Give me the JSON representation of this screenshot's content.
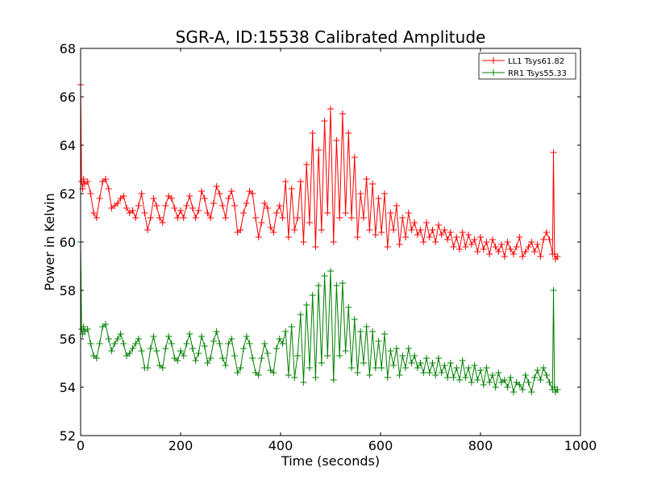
{
  "chart_data": {
    "type": "line",
    "title": "SGR-A, ID:15538 Calibrated Amplitude",
    "xlabel": "Time (seconds)",
    "ylabel": "Power in Kelvin",
    "xlim": [
      0,
      1000
    ],
    "ylim": [
      52,
      68
    ],
    "xticks": [
      0,
      200,
      400,
      600,
      800,
      1000
    ],
    "yticks": [
      52,
      54,
      56,
      58,
      60,
      62,
      64,
      66,
      68
    ],
    "grid": false,
    "legend_position": "top-right",
    "marker": "+",
    "series": [
      {
        "name": "LL1 Tsys61.82",
        "color": "#ff0000",
        "x": [
          0,
          2,
          4,
          6,
          8,
          14,
          20,
          26,
          32,
          38,
          44,
          50,
          56,
          62,
          68,
          74,
          80,
          86,
          92,
          98,
          104,
          110,
          116,
          122,
          128,
          134,
          140,
          146,
          152,
          158,
          164,
          170,
          176,
          182,
          188,
          194,
          200,
          206,
          212,
          218,
          224,
          230,
          236,
          242,
          248,
          254,
          260,
          266,
          272,
          278,
          284,
          290,
          296,
          302,
          308,
          314,
          320,
          326,
          332,
          338,
          344,
          350,
          356,
          362,
          368,
          374,
          380,
          386,
          392,
          398,
          404,
          410,
          416,
          422,
          428,
          434,
          440,
          446,
          452,
          458,
          464,
          470,
          476,
          482,
          488,
          494,
          500,
          506,
          512,
          518,
          524,
          530,
          536,
          542,
          548,
          554,
          560,
          566,
          572,
          578,
          584,
          590,
          596,
          602,
          608,
          614,
          620,
          626,
          632,
          638,
          644,
          650,
          656,
          662,
          668,
          674,
          680,
          686,
          692,
          698,
          704,
          710,
          716,
          722,
          728,
          734,
          740,
          746,
          752,
          758,
          764,
          770,
          776,
          782,
          788,
          794,
          800,
          806,
          812,
          818,
          824,
          830,
          836,
          842,
          848,
          854,
          860,
          866,
          872,
          878,
          884,
          890,
          896,
          902,
          908,
          914,
          920,
          926,
          932,
          938,
          944,
          946,
          948,
          950,
          954
        ],
        "y": [
          66.5,
          62.5,
          62.2,
          62.6,
          62.4,
          62.5,
          62.0,
          61.2,
          61.0,
          61.8,
          62.5,
          62.6,
          62.2,
          61.4,
          61.5,
          61.6,
          61.8,
          61.9,
          61.4,
          61.2,
          61.3,
          61.0,
          61.5,
          62.0,
          61.2,
          60.5,
          61.0,
          61.8,
          61.5,
          61.0,
          60.8,
          61.5,
          61.9,
          61.8,
          61.4,
          61.0,
          61.3,
          61.0,
          61.5,
          61.9,
          61.4,
          61.0,
          61.3,
          62.1,
          61.8,
          61.2,
          61.0,
          61.6,
          62.3,
          62.0,
          61.5,
          61.0,
          61.8,
          62.1,
          61.5,
          60.4,
          60.5,
          61.2,
          61.6,
          62.1,
          62.0,
          61.0,
          60.2,
          60.8,
          61.6,
          61.4,
          60.6,
          60.4,
          61.2,
          61.5,
          61.0,
          62.5,
          60.2,
          62.2,
          60.5,
          61.0,
          62.5,
          60.0,
          63.2,
          60.8,
          64.5,
          59.8,
          63.8,
          60.5,
          65.0,
          61.2,
          65.5,
          60.0,
          64.2,
          61.0,
          65.3,
          61.2,
          64.5,
          61.0,
          63.5,
          60.2,
          62.0,
          61.0,
          62.6,
          60.5,
          62.4,
          60.3,
          61.8,
          60.4,
          62.0,
          59.8,
          61.2,
          60.5,
          61.5,
          59.9,
          61.0,
          60.2,
          61.2,
          60.5,
          60.8,
          60.3,
          60.5,
          60.0,
          60.8,
          60.2,
          60.5,
          60.0,
          60.7,
          60.3,
          60.5,
          60.1,
          60.4,
          59.8,
          60.2,
          59.7,
          60.4,
          59.8,
          60.3,
          59.9,
          60.1,
          59.6,
          60.2,
          59.7,
          60.0,
          59.5,
          60.1,
          59.8,
          59.6,
          59.9,
          59.4,
          60.0,
          59.7,
          59.5,
          59.8,
          60.2,
          59.4,
          59.6,
          59.8,
          60.0,
          59.6,
          59.9,
          59.4,
          60.1,
          60.4,
          60.1,
          59.5,
          63.7,
          59.5,
          59.3,
          59.4
        ]
      },
      {
        "name": "RR1 Tsys55.33",
        "color": "#008000",
        "x": [
          0,
          2,
          4,
          6,
          8,
          14,
          20,
          26,
          32,
          38,
          44,
          50,
          56,
          62,
          68,
          74,
          80,
          86,
          92,
          98,
          104,
          110,
          116,
          122,
          128,
          134,
          140,
          146,
          152,
          158,
          164,
          170,
          176,
          182,
          188,
          194,
          200,
          206,
          212,
          218,
          224,
          230,
          236,
          242,
          248,
          254,
          260,
          266,
          272,
          278,
          284,
          290,
          296,
          302,
          308,
          314,
          320,
          326,
          332,
          338,
          344,
          350,
          356,
          362,
          368,
          374,
          380,
          386,
          392,
          398,
          404,
          410,
          416,
          422,
          428,
          434,
          440,
          446,
          452,
          458,
          464,
          470,
          476,
          482,
          488,
          494,
          500,
          506,
          512,
          518,
          524,
          530,
          536,
          542,
          548,
          554,
          560,
          566,
          572,
          578,
          584,
          590,
          596,
          602,
          608,
          614,
          620,
          626,
          632,
          638,
          644,
          650,
          656,
          662,
          668,
          674,
          680,
          686,
          692,
          698,
          704,
          710,
          716,
          722,
          728,
          734,
          740,
          746,
          752,
          758,
          764,
          770,
          776,
          782,
          788,
          794,
          800,
          806,
          812,
          818,
          824,
          830,
          836,
          842,
          848,
          854,
          860,
          866,
          872,
          878,
          884,
          890,
          896,
          902,
          908,
          914,
          920,
          926,
          932,
          938,
          944,
          946,
          948,
          950,
          954
        ],
        "y": [
          60.0,
          56.4,
          56.2,
          56.5,
          56.3,
          56.4,
          55.8,
          55.3,
          55.2,
          55.8,
          56.5,
          56.6,
          56.0,
          55.5,
          55.8,
          56.0,
          56.2,
          55.8,
          55.3,
          55.4,
          55.6,
          55.8,
          56.0,
          55.5,
          54.8,
          54.8,
          55.6,
          56.1,
          55.5,
          54.9,
          54.8,
          55.6,
          56.1,
          55.8,
          55.2,
          55.1,
          55.5,
          55.3,
          55.8,
          56.2,
          55.6,
          55.1,
          55.4,
          56.1,
          55.7,
          55.0,
          55.2,
          55.9,
          56.3,
          55.8,
          55.2,
          54.9,
          55.8,
          56.0,
          55.3,
          54.6,
          54.8,
          55.6,
          56.1,
          55.8,
          55.2,
          54.6,
          54.5,
          55.2,
          55.8,
          55.4,
          54.7,
          54.6,
          55.6,
          56.0,
          55.8,
          56.3,
          54.5,
          56.5,
          54.4,
          55.3,
          57.0,
          54.2,
          57.4,
          54.8,
          57.8,
          54.4,
          58.2,
          55.0,
          58.6,
          55.3,
          58.8,
          54.3,
          58.2,
          55.3,
          58.3,
          55.5,
          57.3,
          54.8,
          56.8,
          54.6,
          56.3,
          55.0,
          56.5,
          54.5,
          56.3,
          54.8,
          55.9,
          54.8,
          56.2,
          54.4,
          55.5,
          54.9,
          55.6,
          54.5,
          55.3,
          54.8,
          55.6,
          55.0,
          55.3,
          54.8,
          55.0,
          54.6,
          55.2,
          54.6,
          55.0,
          54.5,
          55.2,
          54.6,
          54.9,
          54.4,
          55.0,
          54.4,
          54.8,
          54.3,
          55.1,
          54.4,
          54.8,
          54.2,
          54.9,
          54.3,
          54.7,
          54.1,
          54.8,
          54.2,
          54.5,
          54.0,
          54.6,
          54.2,
          54.3,
          54.0,
          54.4,
          53.8,
          54.2,
          54.1,
          53.9,
          54.5,
          54.2,
          53.8,
          54.4,
          54.7,
          54.3,
          54.8,
          54.5,
          54.2,
          53.9,
          58.0,
          54.0,
          53.8,
          53.9
        ]
      }
    ]
  }
}
